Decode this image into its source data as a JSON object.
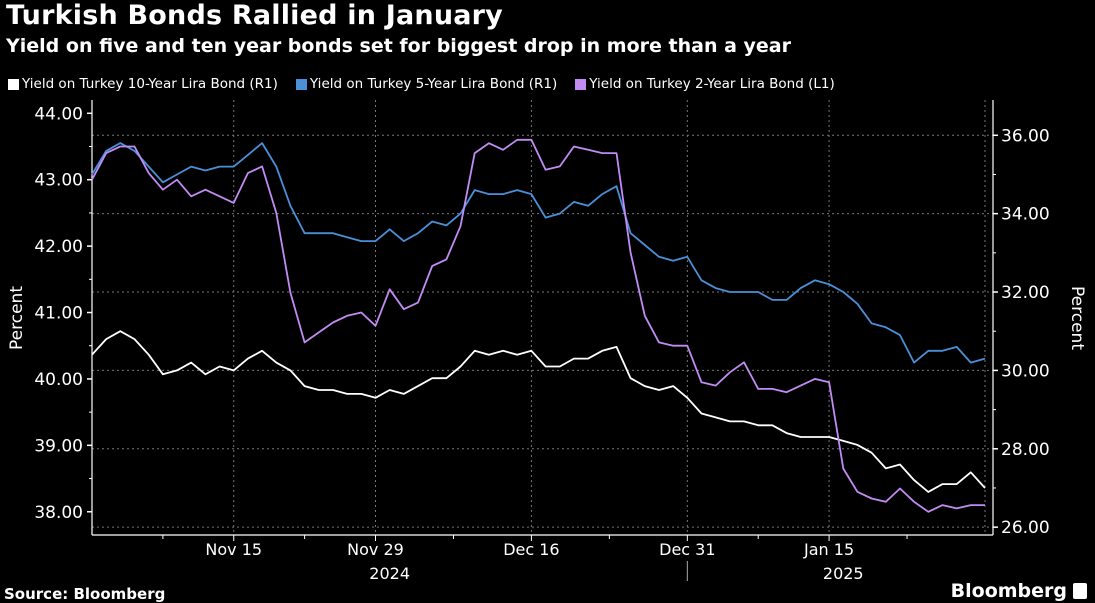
{
  "header": {
    "title": "Turkish Bonds Rallied in January",
    "subtitle": "Yield on five and ten year bonds set for biggest drop in more than a year"
  },
  "footer": {
    "source": "Source: Bloomberg",
    "brand": "Bloomberg"
  },
  "chart_data": {
    "type": "line",
    "title": "Turkish Bonds Rallied in January",
    "subtitle": "Yield on five and ten year bonds set for biggest drop in more than a year",
    "xlabel": "",
    "ylabel_left": "Percent",
    "ylabel_right": "Percent",
    "legend_position": "top-left",
    "grid": true,
    "left_axis": {
      "ylim": [
        37.65,
        44.2
      ],
      "ticks": [
        "44.00",
        "43.00",
        "42.00",
        "41.00",
        "40.00",
        "39.00",
        "38.00"
      ],
      "tick_values": [
        44,
        43,
        42,
        41,
        40,
        39,
        38
      ]
    },
    "right_axis": {
      "ylim": [
        25.8,
        36.9
      ],
      "ticks": [
        "36.00",
        "34.00",
        "32.00",
        "30.00",
        "28.00",
        "26.00"
      ],
      "tick_values": [
        36,
        34,
        32,
        30,
        28,
        26
      ]
    },
    "x_ticks": [
      {
        "label": "Nov 15",
        "index": 10
      },
      {
        "label": "Nov 29",
        "index": 20
      },
      {
        "label": "Dec 16",
        "index": 31
      },
      {
        "label": "Dec 31",
        "index": 42
      },
      {
        "label": "Jan 15",
        "index": 52
      }
    ],
    "x_year_labels": [
      {
        "label": "2024",
        "index": 21
      },
      {
        "label": "2025",
        "index": 53
      }
    ],
    "year_divider_index": 42,
    "n_points": 64,
    "series": [
      {
        "name": "Yield on Turkey 10-Year Lira Bond (R1)",
        "axis": "right",
        "color": "#ffffff",
        "values": [
          30.4,
          30.8,
          31.0,
          30.8,
          30.4,
          29.9,
          30.0,
          30.2,
          29.9,
          30.1,
          30.0,
          30.3,
          30.5,
          30.2,
          30.0,
          29.6,
          29.5,
          29.5,
          29.4,
          29.4,
          29.3,
          29.5,
          29.4,
          29.6,
          29.8,
          29.8,
          30.1,
          30.5,
          30.4,
          30.5,
          30.4,
          30.5,
          30.1,
          30.1,
          30.3,
          30.3,
          30.5,
          30.6,
          29.8,
          29.6,
          29.5,
          29.6,
          29.3,
          28.9,
          28.8,
          28.7,
          28.7,
          28.6,
          28.6,
          28.4,
          28.3,
          28.3,
          28.3,
          28.2,
          28.1,
          27.9,
          27.5,
          27.6,
          27.2,
          26.9,
          27.1,
          27.1,
          27.4,
          27.0
        ]
      },
      {
        "name": "Yield on Turkey 5-Year Lira Bond (R1)",
        "axis": "right",
        "color": "#4a90d9",
        "values": [
          35.0,
          35.6,
          35.8,
          35.6,
          35.2,
          34.8,
          35.0,
          35.2,
          35.1,
          35.2,
          35.2,
          35.5,
          35.8,
          35.2,
          34.2,
          33.5,
          33.5,
          33.5,
          33.4,
          33.3,
          33.3,
          33.6,
          33.3,
          33.5,
          33.8,
          33.7,
          34.0,
          34.6,
          34.5,
          34.5,
          34.6,
          34.5,
          33.9,
          34.0,
          34.3,
          34.2,
          34.5,
          34.7,
          33.5,
          33.2,
          32.9,
          32.8,
          32.9,
          32.3,
          32.1,
          32.0,
          32.0,
          32.0,
          31.8,
          31.8,
          32.1,
          32.3,
          32.2,
          32.0,
          31.7,
          31.2,
          31.1,
          30.9,
          30.2,
          30.5,
          30.5,
          30.6,
          30.2,
          30.3
        ]
      },
      {
        "name": "Yield on Turkey 2-Year Lira Bond (L1)",
        "axis": "left",
        "color": "#c28cf4",
        "values": [
          43.0,
          43.4,
          43.5,
          43.5,
          43.1,
          42.85,
          43.0,
          42.75,
          42.85,
          42.75,
          42.65,
          43.1,
          43.2,
          42.5,
          41.3,
          40.55,
          40.7,
          40.85,
          40.95,
          41.0,
          40.8,
          41.35,
          41.05,
          41.15,
          41.7,
          41.8,
          42.3,
          43.4,
          43.55,
          43.45,
          43.6,
          43.6,
          43.15,
          43.2,
          43.5,
          43.45,
          43.4,
          43.4,
          41.9,
          40.95,
          40.55,
          40.5,
          40.5,
          39.95,
          39.9,
          40.1,
          40.25,
          39.85,
          39.85,
          39.8,
          39.9,
          40.0,
          39.95,
          38.65,
          38.3,
          38.2,
          38.15,
          38.35,
          38.15,
          38.0,
          38.1,
          38.05,
          38.1,
          38.1
        ]
      }
    ]
  },
  "legend": [
    {
      "label": "Yield on Turkey 10-Year Lira Bond (R1)",
      "color": "#ffffff"
    },
    {
      "label": "Yield on Turkey 5-Year Lira Bond (R1)",
      "color": "#4a90d9"
    },
    {
      "label": "Yield on Turkey 2-Year Lira Bond (L1)",
      "color": "#c28cf4"
    }
  ]
}
